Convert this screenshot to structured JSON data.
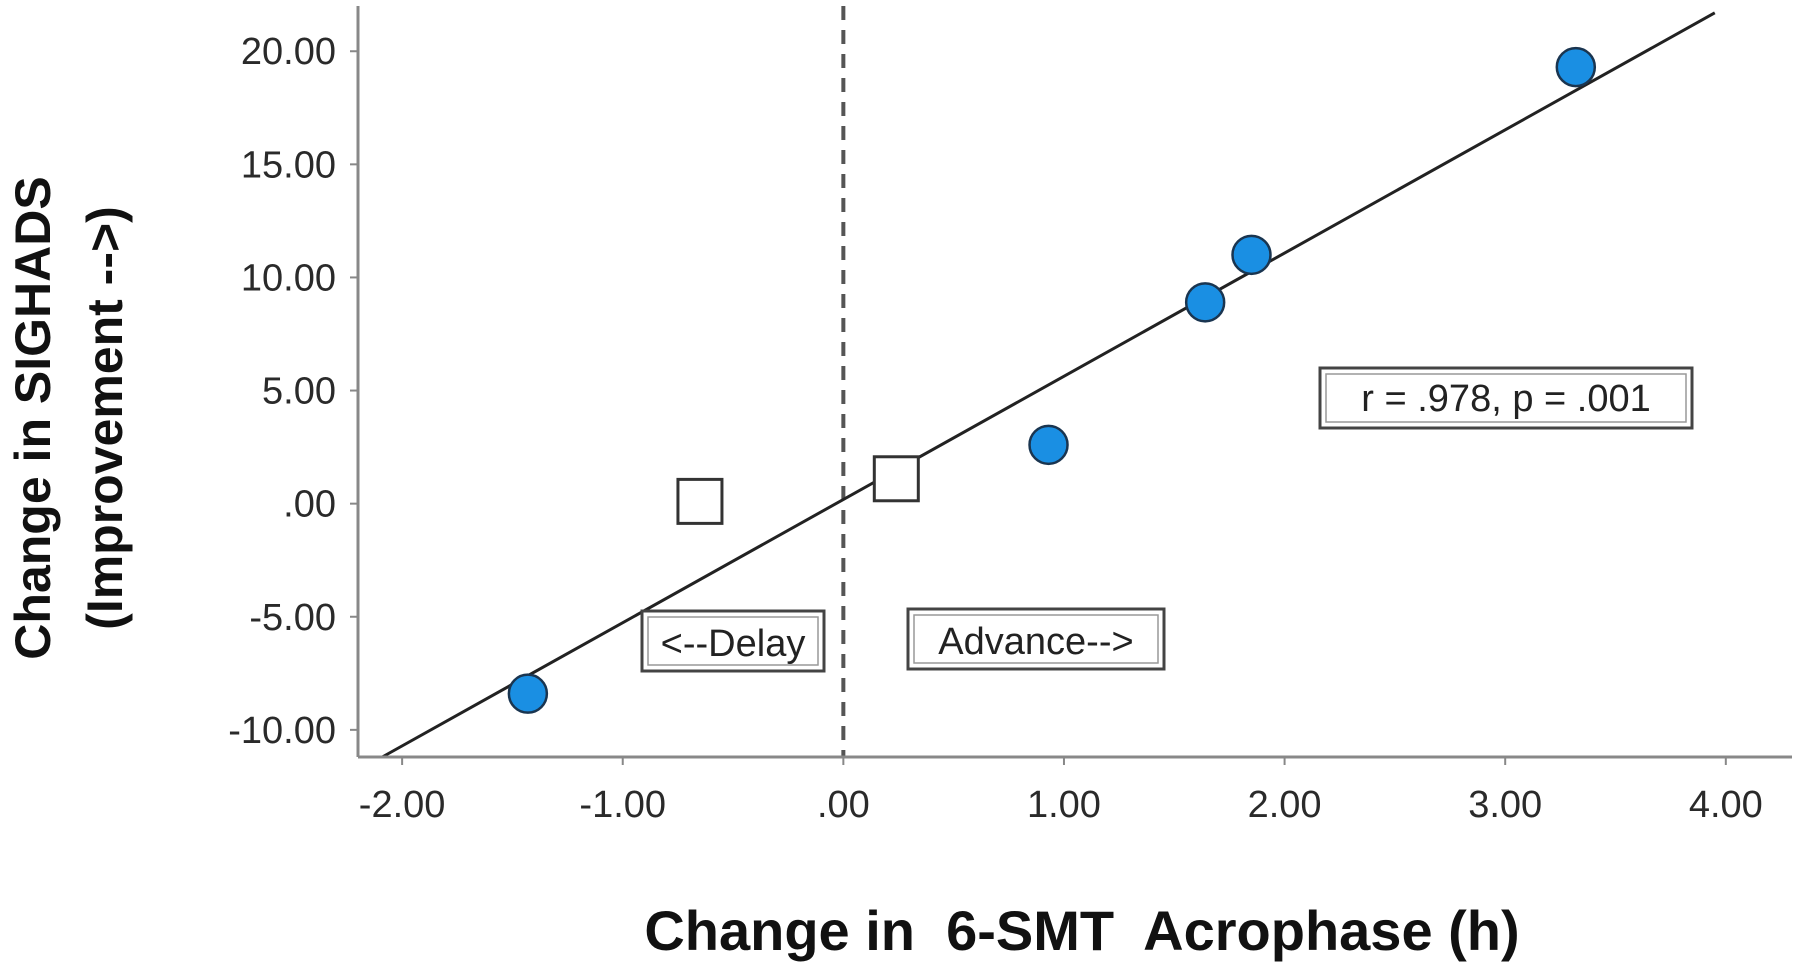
{
  "chart_data": {
    "type": "scatter",
    "title": "",
    "xlabel": "Change in  6-SMT  Acrophase (h)",
    "ylabel_line1": "Change in SIGHADS",
    "ylabel_line2": "(Improvement -->)",
    "xlim": [
      -2.2,
      4.3
    ],
    "ylim": [
      -11.2,
      22.0
    ],
    "x_ticks": [
      -2,
      -1,
      0,
      1,
      2,
      3,
      4
    ],
    "x_tick_labels": [
      "-2.00",
      "-1.00",
      ".00",
      "1.00",
      "2.00",
      "3.00",
      "4.00"
    ],
    "y_ticks": [
      -10,
      -5,
      0,
      5,
      10,
      15,
      20
    ],
    "y_tick_labels": [
      "-10.00",
      "-5.00",
      ".00",
      "5.00",
      "10.00",
      "15.00",
      "20.00"
    ],
    "grid": false,
    "reference_line_x": 0,
    "series": [
      {
        "marker": "circle",
        "color": "#1a8fe3",
        "points": [
          {
            "x": -1.43,
            "y": -8.4
          },
          {
            "x": 0.93,
            "y": 2.6
          },
          {
            "x": 1.64,
            "y": 8.9
          },
          {
            "x": 1.85,
            "y": 11.0
          },
          {
            "x": 3.32,
            "y": 19.3
          }
        ]
      },
      {
        "marker": "square",
        "color": "#ffffff",
        "points": [
          {
            "x": -0.65,
            "y": 0.1
          },
          {
            "x": 0.24,
            "y": 1.1
          }
        ]
      }
    ],
    "fit_line": {
      "x": [
        -2.09,
        3.95
      ],
      "y": [
        -11.2,
        21.7
      ]
    },
    "annotations": {
      "stats": "r = .978, p = .001",
      "delay": "<--Delay",
      "advance": "Advance-->"
    },
    "colors": {
      "axis": "#888888",
      "fit_line": "#222222",
      "reference_line": "#555555"
    }
  }
}
